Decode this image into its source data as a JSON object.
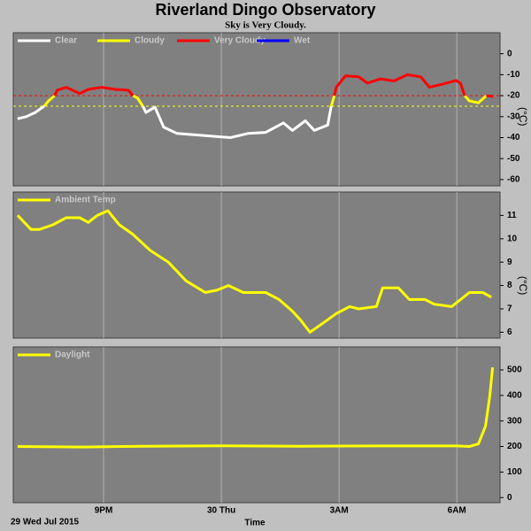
{
  "title": "Riverland Dingo Observatory",
  "subtitle": "Sky is Very Cloudy.",
  "xaxis": {
    "label": "Time",
    "start": "29 Wed Jul 2015",
    "xlim": [
      18.7,
      31.1
    ],
    "xticks": [
      {
        "value": 21,
        "label": "9PM"
      },
      {
        "value": 24,
        "label": "30 Thu"
      },
      {
        "value": 27,
        "label": "3AM"
      },
      {
        "value": 30,
        "label": "6AM"
      }
    ],
    "grid": true
  },
  "chart_data": [
    {
      "type": "line",
      "ylabel": "(°C)",
      "ylim": [
        -63,
        10
      ],
      "yticks": [
        0,
        -10,
        -20,
        -30,
        -40,
        -50,
        -60
      ],
      "thresholds": [
        {
          "value": -20,
          "color": "#ff0000"
        },
        {
          "value": -25,
          "color": "#ffff00"
        }
      ],
      "series": [
        {
          "name": "Clear",
          "color": "#ffffff",
          "x": [
            18.81,
            19.03,
            19.26,
            19.49,
            20.0,
            22.0,
            22.08,
            22.31,
            22.53,
            22.87,
            23.55,
            24.23,
            24.68,
            25.13,
            25.58,
            25.81,
            26.14,
            26.37,
            26.71,
            26.8
          ],
          "values": [
            -31,
            -30,
            -28,
            -25,
            null,
            -25,
            -28,
            -25.5,
            -35,
            -38,
            -39,
            -40,
            -38,
            -37.5,
            -33,
            -36.6,
            -32,
            -36.6,
            -34,
            -25
          ]
        },
        {
          "name": "Cloudy",
          "color": "#ffff00",
          "x": [
            19.49,
            19.6,
            19.75,
            21.0,
            21.75,
            21.86,
            22.0,
            25.0,
            26.8,
            26.88,
            29.0,
            30.2,
            30.32,
            30.55,
            30.75
          ],
          "values": [
            -25,
            -22.5,
            -20,
            null,
            -20,
            -21,
            -25,
            null,
            -25,
            -20,
            null,
            -20,
            -22.5,
            -23.4,
            -20
          ]
        },
        {
          "name": "Very Cloudy",
          "color": "#ff0000",
          "x": [
            19.75,
            19.82,
            20.05,
            20.39,
            20.61,
            20.95,
            21.29,
            21.63,
            21.75,
            24.0,
            26.88,
            26.93,
            27.16,
            27.5,
            27.72,
            28.06,
            28.4,
            28.74,
            29.08,
            29.3,
            29.64,
            29.98,
            30.09,
            30.2,
            30.5,
            30.75,
            30.93
          ],
          "values": [
            -20,
            -17.4,
            -16,
            -19,
            -17,
            -16,
            -17,
            -17.4,
            -20,
            null,
            -20,
            -16,
            -10.6,
            -11,
            -14,
            -12,
            -13,
            -10,
            -11,
            -16,
            -14.5,
            -12.8,
            -14,
            -20,
            null,
            -20,
            -20.4
          ]
        },
        {
          "name": "Wet",
          "color": "#0000ff",
          "x": [],
          "values": []
        }
      ]
    },
    {
      "type": "line",
      "ylabel": "(°C)",
      "ylim": [
        5.75,
        12
      ],
      "yticks": [
        11,
        10,
        9,
        8,
        7,
        6
      ],
      "series": [
        {
          "name": "Ambient Temp",
          "color": "#ffff00",
          "x": [
            18.81,
            19.15,
            19.37,
            19.71,
            20.05,
            20.39,
            20.61,
            20.84,
            21.11,
            21.4,
            21.74,
            22.19,
            22.65,
            23.1,
            23.59,
            23.89,
            24.18,
            24.56,
            25.13,
            25.47,
            25.81,
            26.03,
            26.26,
            26.6,
            26.93,
            27.27,
            27.5,
            27.95,
            28.11,
            28.51,
            28.79,
            29.19,
            29.42,
            29.87,
            30.32,
            30.66,
            30.88
          ],
          "values": [
            11,
            10.4,
            10.4,
            10.6,
            10.9,
            10.9,
            10.7,
            11,
            11.2,
            10.6,
            10.2,
            9.5,
            9,
            8.2,
            7.7,
            7.8,
            8,
            7.7,
            7.7,
            7.4,
            6.9,
            6.5,
            6,
            6.4,
            6.8,
            7.1,
            7,
            7.1,
            7.9,
            7.9,
            7.4,
            7.4,
            7.2,
            7.1,
            7.7,
            7.7,
            7.5
          ]
        }
      ]
    },
    {
      "type": "line",
      "ylim": [
        -20,
        590
      ],
      "yticks": [
        500,
        400,
        300,
        200,
        100,
        0
      ],
      "series": [
        {
          "name": "Daylight",
          "color": "#ffff00",
          "x": [
            18.81,
            20.5,
            22.0,
            24.0,
            26.0,
            28.0,
            30.0,
            30.32,
            30.55,
            30.73,
            30.84,
            30.91
          ],
          "values": [
            200,
            198,
            201,
            203,
            201,
            202,
            202,
            200,
            210,
            280,
            400,
            510
          ]
        }
      ]
    }
  ]
}
